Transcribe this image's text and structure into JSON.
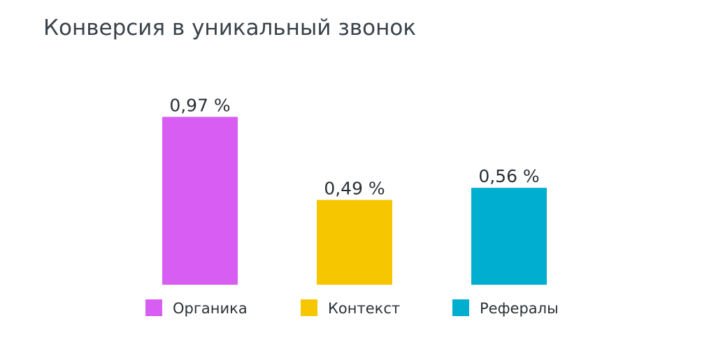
{
  "chart_data": {
    "type": "bar",
    "title": "Конверсия в уникальный звонок",
    "xlabel": "",
    "ylabel": "",
    "ylim": [
      0,
      1.0
    ],
    "grid": false,
    "legend_position": "bottom",
    "categories": [
      "Органика",
      "Контекст",
      "Рефералы"
    ],
    "values": [
      0.97,
      0.49,
      0.56
    ],
    "data_labels": [
      "0,97 %",
      "0,49 %",
      "0,56 %"
    ],
    "colors": [
      "#d85df2",
      "#f6c600",
      "#00aecf"
    ]
  }
}
